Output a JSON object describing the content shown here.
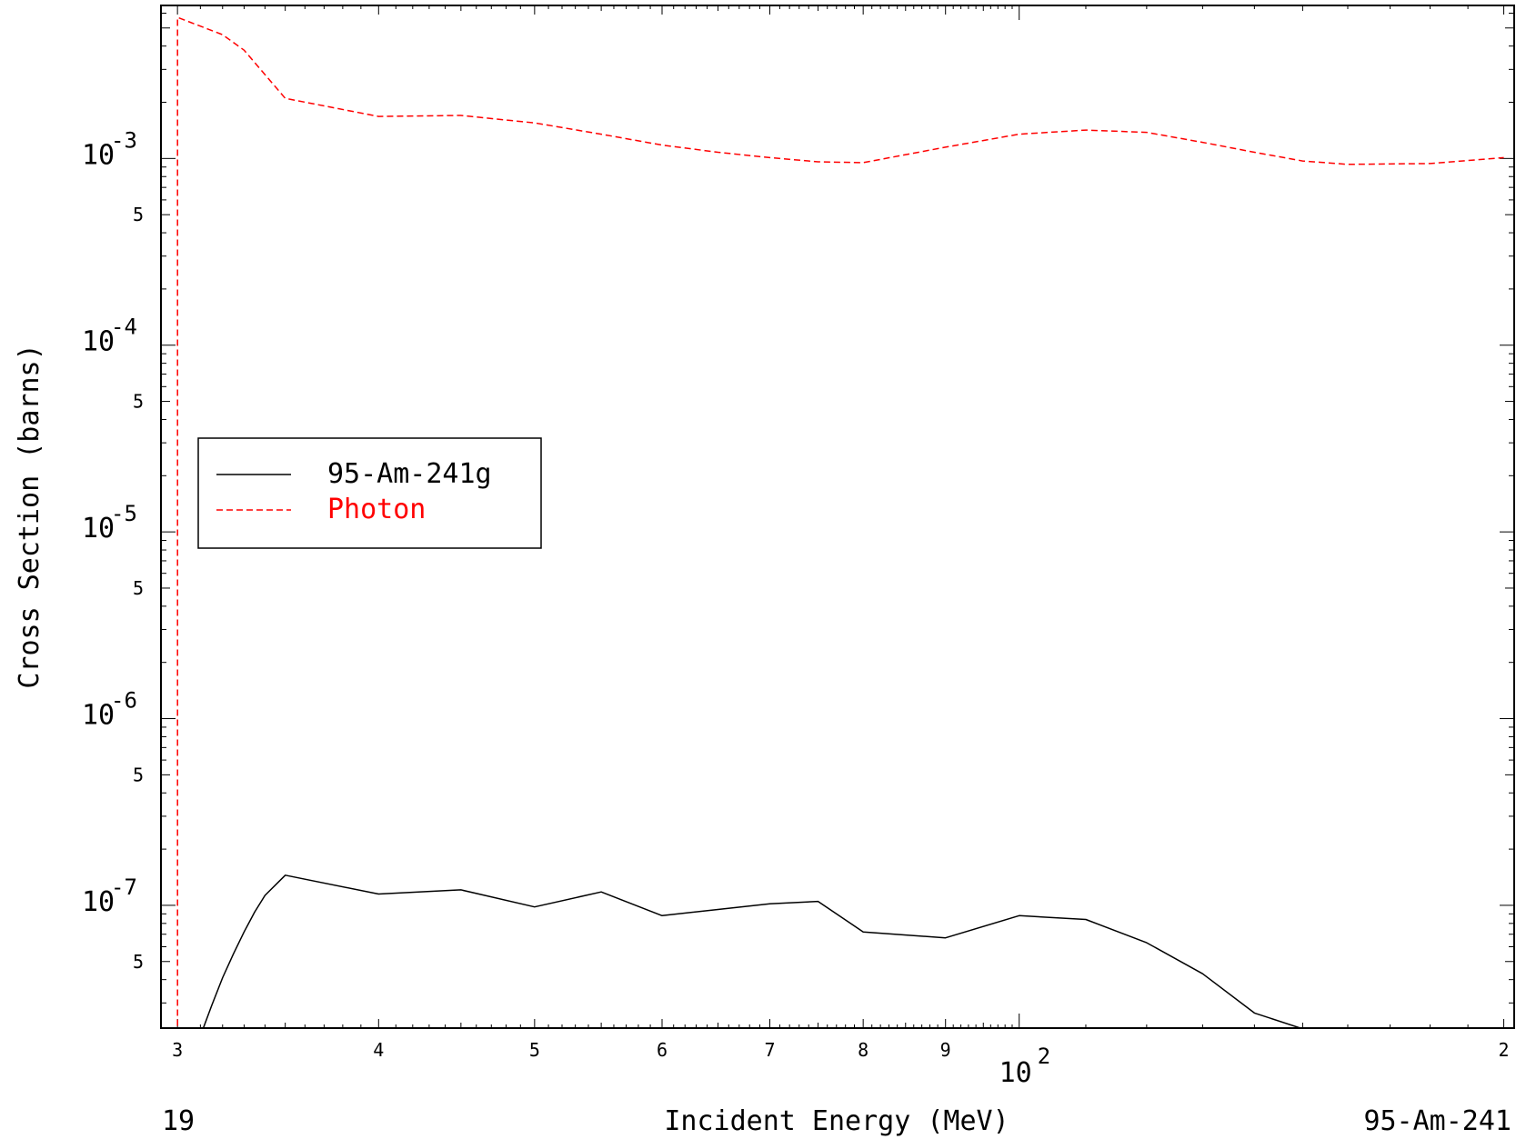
{
  "chart_data": {
    "type": "line",
    "title": "",
    "xlabel": "Incident Energy (MeV)",
    "ylabel": "Cross Section (barns)",
    "xscale": "log",
    "yscale": "log",
    "xlim": [
      29.3,
      203
    ],
    "ylim": [
      2.2e-08,
      0.0066
    ],
    "x_tick_labels": [
      {
        "value": 30,
        "label": "3"
      },
      {
        "value": 40,
        "label": "4"
      },
      {
        "value": 50,
        "label": "5"
      },
      {
        "value": 60,
        "label": "6"
      },
      {
        "value": 70,
        "label": "7"
      },
      {
        "value": 80,
        "label": "8"
      },
      {
        "value": 90,
        "label": "9"
      },
      {
        "value": 200,
        "label": "2"
      }
    ],
    "x_decade_label": {
      "value": 100,
      "base": "10",
      "exp": "2"
    },
    "y_decade_labels": [
      {
        "value": 0.001,
        "base": "10",
        "exp": "-3"
      },
      {
        "value": 0.0001,
        "base": "10",
        "exp": "-4"
      },
      {
        "value": 1e-05,
        "base": "10",
        "exp": "-5"
      },
      {
        "value": 1e-06,
        "base": "10",
        "exp": "-6"
      },
      {
        "value": 1e-07,
        "base": "10",
        "exp": "-7"
      }
    ],
    "y_minor_labels": [
      {
        "value": 0.0005,
        "label": "5"
      },
      {
        "value": 5e-05,
        "label": "5"
      },
      {
        "value": 5e-06,
        "label": "5"
      },
      {
        "value": 5e-07,
        "label": "5"
      },
      {
        "value": 5e-08,
        "label": "5"
      }
    ],
    "legend_position": "left-middle",
    "series": [
      {
        "name": "95-Am-241g",
        "color": "#000000",
        "dash": "solid",
        "x": [
          31,
          31.5,
          32,
          32.5,
          33,
          33.5,
          34,
          35,
          40,
          45,
          50,
          55,
          60,
          65,
          70,
          75,
          80,
          90,
          100,
          110,
          120,
          130,
          140,
          150,
          160,
          180,
          200
        ],
        "y": [
          2e-08,
          2.9e-08,
          4.1e-08,
          5.5e-08,
          7.2e-08,
          9.2e-08,
          1.13e-07,
          1.45e-07,
          1.15e-07,
          1.21e-07,
          9.8e-08,
          1.18e-07,
          8.8e-08,
          9.5e-08,
          1.02e-07,
          1.05e-07,
          7.2e-08,
          6.7e-08,
          8.8e-08,
          8.4e-08,
          6.3e-08,
          4.3e-08,
          2.65e-08,
          2.18e-08,
          2.13e-08,
          2.13e-08,
          2.17e-08
        ]
      },
      {
        "name": "Photon",
        "color": "#ff0000",
        "dash": "dashed",
        "x": [
          30,
          30,
          32,
          33,
          35,
          40,
          45,
          50,
          55,
          60,
          65,
          70,
          75,
          80,
          90,
          100,
          110,
          120,
          130,
          140,
          150,
          160,
          180,
          200
        ],
        "y": [
          2e-08,
          0.0057,
          0.0046,
          0.0038,
          0.0021,
          0.00168,
          0.0017,
          0.00155,
          0.00135,
          0.00118,
          0.00108,
          0.00101,
          0.00096,
          0.00095,
          0.00115,
          0.00135,
          0.00142,
          0.00138,
          0.00122,
          0.00108,
          0.00097,
          0.00093,
          0.00094,
          0.00101
        ]
      }
    ]
  },
  "footer": {
    "left": "19",
    "right": "95-Am-241"
  }
}
